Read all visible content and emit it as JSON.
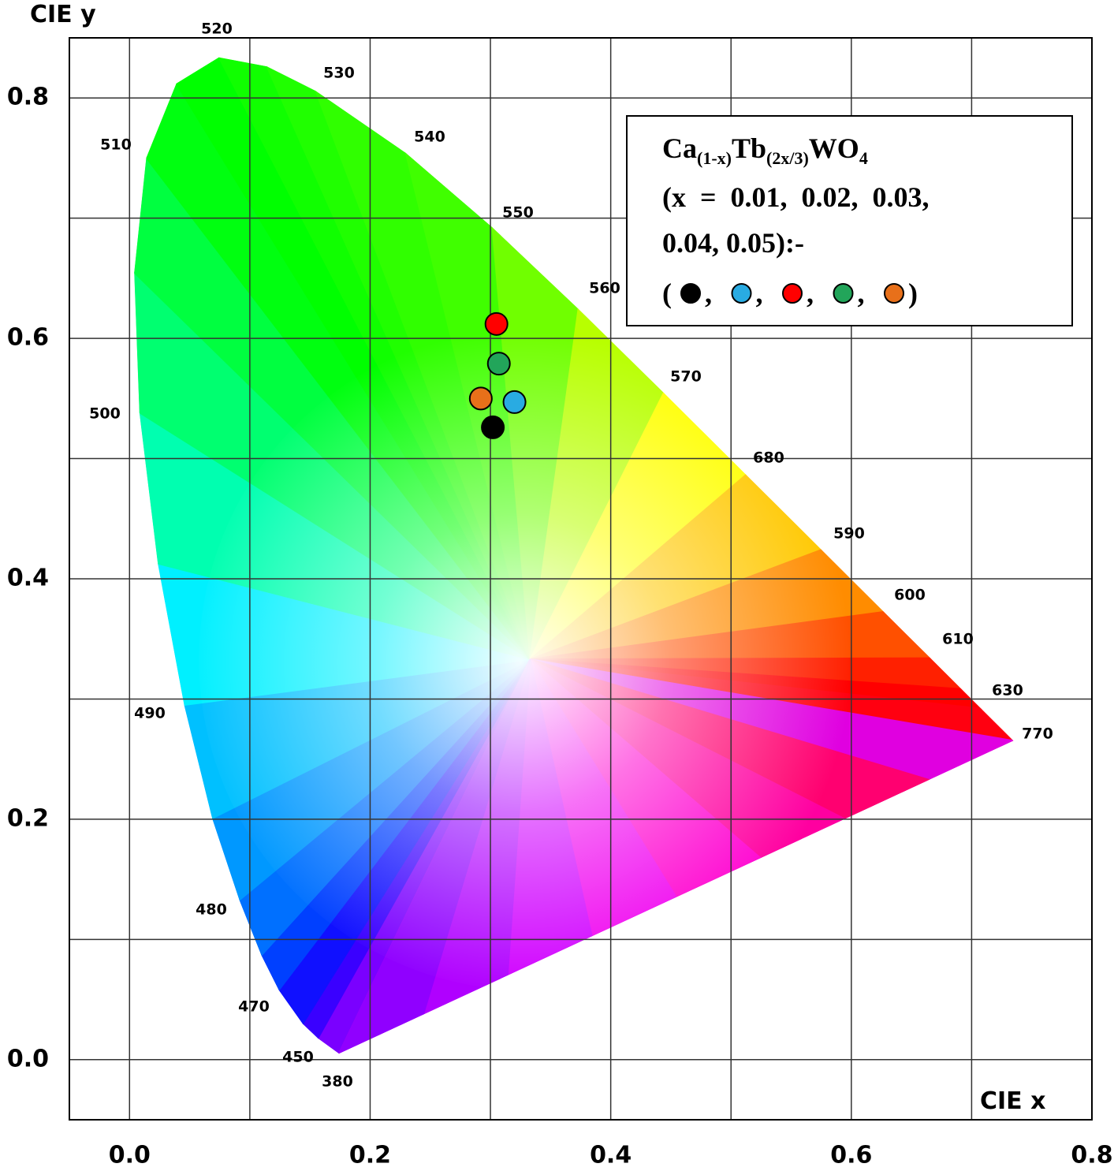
{
  "chart_data": {
    "type": "scatter",
    "xlabel": "CIE x",
    "ylabel": "CIE y",
    "xlim": [
      -0.05,
      0.8
    ],
    "ylim": [
      -0.05,
      0.85
    ],
    "xticks": [
      {
        "value": 0,
        "label": "0.0"
      },
      0.2,
      0.4,
      0.6,
      0.8
    ],
    "yticks": [
      {
        "value": 0,
        "label": "0.0"
      },
      0.2,
      0.4,
      0.6,
      0.8
    ],
    "xminorticks": [
      0.1,
      0.3,
      0.5,
      0.7
    ],
    "yminorticks": [
      0.1,
      0.3,
      0.5,
      0.7
    ],
    "grid": true,
    "series": [
      {
        "color": "#000000",
        "x": 0.302,
        "y": 0.526
      },
      {
        "color": "#29abe2",
        "x": 0.32,
        "y": 0.547
      },
      {
        "color": "#ff0000",
        "x": 0.305,
        "y": 0.612
      },
      {
        "color": "#22a55a",
        "x": 0.307,
        "y": 0.579
      },
      {
        "color": "#e8701a",
        "x": 0.292,
        "y": 0.55
      }
    ],
    "wavelength_labels": [
      "520",
      "530",
      "540",
      "550",
      "560",
      "570",
      "680",
      "590",
      "600",
      "610",
      "630",
      "770",
      "510",
      "500",
      "490",
      "480",
      "470",
      "450",
      "380"
    ],
    "legend": {
      "formula": [
        "Ca",
        "(1-x)",
        "Tb",
        "(2x/3)",
        "WO",
        "4"
      ],
      "lines": [
        "(x  =  0.01,  0.02,  0.03,",
        "0.04, 0.05):-"
      ],
      "marker_open": "(",
      "marker_sep": ",",
      "marker_close": ")"
    }
  }
}
